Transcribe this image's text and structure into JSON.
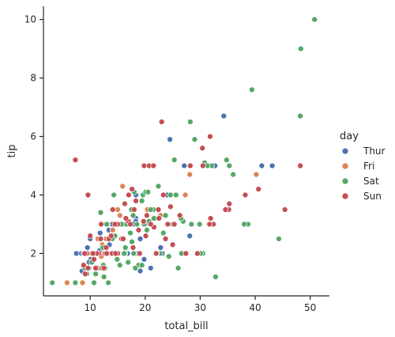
{
  "chart_data": {
    "type": "scatter",
    "title": "",
    "xlabel": "total_bill",
    "ylabel": "tip",
    "xlim": [
      1.5,
      53.5
    ],
    "ylim": [
      0.55,
      10.45
    ],
    "xticks": [
      10,
      20,
      30,
      40,
      50
    ],
    "yticks": [
      2,
      4,
      6,
      8,
      10
    ],
    "grid": false,
    "legend": {
      "title": "day",
      "position": "right"
    },
    "series": [
      {
        "name": "Thur",
        "color": "#4c72b0",
        "points": [
          [
            27.2,
            4.0
          ],
          [
            22.8,
            2.2
          ],
          [
            18.3,
            3.2
          ],
          [
            25.0,
            3.0
          ],
          [
            21.0,
            3.0
          ],
          [
            7.5,
            2.0
          ],
          [
            10.1,
            1.8
          ],
          [
            16.8,
            2.0
          ],
          [
            12.0,
            2.0
          ],
          [
            18.3,
            3.1
          ],
          [
            11.4,
            1.5
          ],
          [
            12.6,
            2.0
          ],
          [
            8.5,
            1.4
          ],
          [
            9.8,
            1.7
          ],
          [
            12.7,
            2.0
          ],
          [
            13.0,
            2.0
          ],
          [
            16.3,
            2.0
          ],
          [
            11.9,
            2.1
          ],
          [
            9.5,
            2.2
          ],
          [
            14.7,
            2.0
          ],
          [
            18.4,
            3.0
          ],
          [
            11.7,
            2.1
          ],
          [
            13.4,
            2.0
          ],
          [
            15.5,
            3.0
          ],
          [
            19.1,
            2.5
          ],
          [
            28.1,
            2.6
          ],
          [
            32.7,
            5.0
          ],
          [
            34.3,
            6.7
          ],
          [
            41.2,
            5.0
          ],
          [
            43.1,
            5.0
          ],
          [
            27.1,
            5.0
          ],
          [
            24.5,
            5.9
          ],
          [
            18.3,
            4.0
          ],
          [
            16.0,
            2.0
          ],
          [
            14.8,
            2.0
          ],
          [
            15.4,
            3.0
          ],
          [
            12.9,
            2.0
          ],
          [
            16.3,
            2.0
          ],
          [
            17.9,
            3.0
          ],
          [
            20.0,
            3.0
          ],
          [
            20.5,
            4.1
          ],
          [
            8.4,
            2.0
          ],
          [
            8.8,
            2.0
          ],
          [
            13.4,
            2.8
          ],
          [
            14.4,
            2.0
          ],
          [
            10.3,
            2.0
          ],
          [
            10.0,
            2.5
          ],
          [
            18.7,
            2.0
          ],
          [
            19.8,
            1.8
          ],
          [
            16.0,
            3.0
          ],
          [
            13.5,
            2.3
          ],
          [
            11.8,
            2.7
          ],
          [
            12.5,
            2.0
          ],
          [
            10.1,
            2.0
          ],
          [
            11.6,
            2.0
          ],
          [
            15.7,
            3.0
          ],
          [
            19.1,
            1.4
          ],
          [
            21.0,
            1.5
          ],
          [
            22.5,
            2.0
          ],
          [
            23.1,
            2.0
          ],
          [
            24.0,
            4.0
          ],
          [
            14.0,
            3.0
          ]
        ]
      },
      {
        "name": "Fri",
        "color": "#dd8452",
        "points": [
          [
            5.8,
            1.0
          ],
          [
            28.1,
            4.7
          ],
          [
            11.4,
            2.5
          ],
          [
            16.3,
            3.0
          ],
          [
            22.8,
            3.3
          ],
          [
            40.2,
            4.7
          ],
          [
            27.3,
            4.0
          ],
          [
            12.0,
            1.9
          ],
          [
            11.4,
            2.5
          ],
          [
            15.4,
            3.3
          ],
          [
            13.4,
            2.0
          ],
          [
            15.0,
            3.5
          ],
          [
            12.2,
            2.3
          ],
          [
            10.2,
            2.0
          ],
          [
            13.2,
            3.0
          ],
          [
            15.9,
            4.3
          ],
          [
            12.0,
            1.5
          ],
          [
            20.4,
            3.5
          ],
          [
            16.3,
            3.0
          ],
          [
            14.1,
            2.8
          ],
          [
            8.6,
            1.0
          ],
          [
            12.9,
            2.5
          ],
          [
            17.1,
            3.1
          ]
        ]
      },
      {
        "name": "Sat",
        "color": "#55a868",
        "points": [
          [
            3.1,
            1.0
          ],
          [
            7.3,
            1.0
          ],
          [
            50.8,
            10.0
          ],
          [
            48.3,
            9.0
          ],
          [
            39.4,
            7.6
          ],
          [
            48.2,
            6.7
          ],
          [
            28.2,
            6.5
          ],
          [
            29.0,
            5.9
          ],
          [
            32.1,
            5.0
          ],
          [
            34.8,
            5.2
          ],
          [
            35.3,
            5.0
          ],
          [
            36.0,
            4.7
          ],
          [
            38.7,
            3.0
          ],
          [
            38.0,
            3.0
          ],
          [
            44.3,
            2.5
          ],
          [
            26.0,
            1.5
          ],
          [
            32.8,
            1.2
          ],
          [
            30.5,
            2.0
          ],
          [
            27.0,
            2.0
          ],
          [
            30.1,
            2.0
          ],
          [
            22.2,
            2.0
          ],
          [
            15.7,
            3.0
          ],
          [
            13.9,
            2.0
          ],
          [
            9.4,
            1.3
          ],
          [
            10.3,
            1.7
          ],
          [
            12.7,
            1.5
          ],
          [
            13.3,
            1.0
          ],
          [
            11.0,
            1.3
          ],
          [
            9.8,
            1.5
          ],
          [
            10.6,
            2.0
          ],
          [
            12.5,
            1.2
          ],
          [
            16.9,
            1.7
          ],
          [
            18.5,
            3.0
          ],
          [
            22.4,
            4.3
          ],
          [
            24.6,
            4.0
          ],
          [
            25.3,
            5.2
          ],
          [
            26.9,
            3.1
          ],
          [
            25.6,
            4.0
          ],
          [
            17.8,
            3.3
          ],
          [
            19.4,
            3.8
          ],
          [
            16.4,
            2.2
          ],
          [
            18.0,
            4.1
          ],
          [
            19.6,
            4.0
          ],
          [
            20.1,
            4.1
          ],
          [
            21.5,
            3.5
          ],
          [
            20.7,
            3.1
          ],
          [
            14.3,
            4.0
          ],
          [
            11.9,
            3.4
          ],
          [
            16.0,
            2.0
          ],
          [
            15.0,
            1.8
          ],
          [
            17.3,
            2.7
          ],
          [
            17.6,
            2.4
          ],
          [
            15.1,
            2.0
          ],
          [
            14.5,
            2.6
          ],
          [
            12.3,
            2.2
          ],
          [
            13.8,
            2.0
          ],
          [
            18.8,
            1.6
          ],
          [
            22.7,
            2.0
          ],
          [
            24.3,
            1.9
          ],
          [
            19.8,
            3.0
          ],
          [
            21.0,
            3.5
          ],
          [
            23.3,
            2.7
          ],
          [
            26.6,
            2.0
          ],
          [
            29.9,
            3.0
          ],
          [
            30.8,
            5.1
          ],
          [
            31.3,
            5.0
          ],
          [
            26.5,
            3.2
          ],
          [
            19.4,
            1.6
          ],
          [
            17.5,
            3.5
          ],
          [
            14.0,
            2.5
          ],
          [
            13.0,
            3.0
          ],
          [
            20.3,
            2.8
          ],
          [
            22.1,
            2.0
          ],
          [
            15.4,
            1.6
          ],
          [
            16.6,
            3.0
          ],
          [
            25.0,
            3.0
          ],
          [
            28.4,
            3.0
          ],
          [
            10.7,
            1.0
          ],
          [
            9.0,
            1.5
          ],
          [
            16.2,
            2.0
          ],
          [
            17.9,
            2.0
          ],
          [
            18.2,
            1.5
          ],
          [
            20.5,
            4.1
          ],
          [
            21.6,
            3.2
          ],
          [
            23.7,
            3.3
          ],
          [
            12.4,
            1.6
          ],
          [
            14.9,
            1.8
          ]
        ]
      },
      {
        "name": "Sun",
        "color": "#c44e52",
        "points": [
          [
            7.3,
            5.2
          ],
          [
            9.6,
            4.0
          ],
          [
            23.0,
            6.5
          ],
          [
            30.4,
            5.6
          ],
          [
            31.8,
            6.0
          ],
          [
            48.2,
            5.0
          ],
          [
            45.4,
            3.5
          ],
          [
            40.6,
            4.2
          ],
          [
            38.2,
            4.0
          ],
          [
            35.3,
            3.7
          ],
          [
            35.2,
            3.5
          ],
          [
            32.4,
            3.0
          ],
          [
            31.9,
            3.2
          ],
          [
            30.5,
            5.0
          ],
          [
            28.2,
            5.0
          ],
          [
            24.6,
            3.6
          ],
          [
            25.3,
            3.0
          ],
          [
            23.7,
            2.5
          ],
          [
            22.4,
            3.5
          ],
          [
            21.6,
            2.9
          ],
          [
            20.7,
            5.0
          ],
          [
            19.8,
            5.0
          ],
          [
            21.5,
            5.0
          ],
          [
            19.7,
            3.1
          ],
          [
            18.3,
            3.8
          ],
          [
            17.8,
            2.2
          ],
          [
            17.0,
            4.0
          ],
          [
            16.3,
            3.7
          ],
          [
            15.0,
            3.0
          ],
          [
            14.1,
            3.5
          ],
          [
            13.4,
            2.5
          ],
          [
            12.7,
            2.0
          ],
          [
            11.6,
            2.0
          ],
          [
            10.7,
            1.8
          ],
          [
            10.0,
            2.6
          ],
          [
            9.4,
            2.0
          ],
          [
            9.6,
            1.5
          ],
          [
            8.8,
            1.6
          ],
          [
            10.3,
            2.0
          ],
          [
            11.2,
            2.0
          ],
          [
            12.0,
            3.0
          ],
          [
            13.0,
            2.0
          ],
          [
            14.0,
            2.0
          ],
          [
            15.7,
            2.5
          ],
          [
            16.9,
            3.1
          ],
          [
            17.3,
            3.0
          ],
          [
            18.8,
            2.8
          ],
          [
            20.1,
            2.6
          ],
          [
            21.0,
            3.0
          ],
          [
            22.5,
            3.2
          ],
          [
            23.3,
            4.0
          ],
          [
            24.1,
            3.0
          ],
          [
            26.3,
            3.3
          ],
          [
            27.4,
            2.0
          ],
          [
            29.5,
            2.0
          ],
          [
            31.7,
            3.0
          ],
          [
            34.6,
            3.5
          ],
          [
            11.9,
            2.5
          ],
          [
            13.8,
            2.6
          ],
          [
            12.5,
            1.5
          ],
          [
            15.0,
            2.0
          ],
          [
            14.5,
            3.0
          ],
          [
            16.5,
            3.2
          ],
          [
            17.6,
            4.2
          ],
          [
            19.0,
            2.0
          ],
          [
            20.3,
            3.3
          ],
          [
            9.1,
            1.3
          ],
          [
            10.5,
            2.0
          ],
          [
            18.0,
            3.5
          ],
          [
            12.9,
            2.2
          ],
          [
            14.6,
            2.0
          ],
          [
            16.0,
            2.5
          ],
          [
            25.0,
            2.3
          ],
          [
            22.0,
            2.0
          ],
          [
            9.0,
            2.0
          ],
          [
            11.0,
            1.5
          ]
        ]
      }
    ]
  }
}
